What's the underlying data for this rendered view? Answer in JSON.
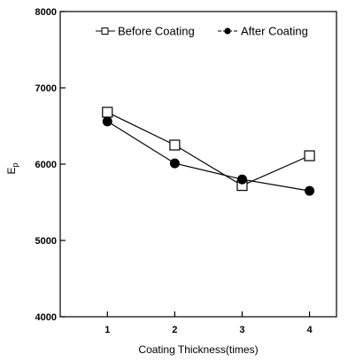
{
  "chart_data": {
    "type": "line",
    "title": "",
    "xlabel": "Coating Thickness(times)",
    "ylabel": "Ep",
    "ylabel_main": "E",
    "ylabel_sub": "p",
    "x": [
      1,
      2,
      3,
      4
    ],
    "x_tick_labels": [
      "1",
      "2",
      "3",
      "4"
    ],
    "xlim": [
      0.3,
      4.4
    ],
    "ylim": [
      4000,
      8000
    ],
    "y_ticks": [
      4000,
      5000,
      6000,
      7000,
      8000
    ],
    "y_tick_labels": [
      "4000",
      "5000",
      "6000",
      "7000",
      "8000"
    ],
    "grid": false,
    "legend_position": "top",
    "series": [
      {
        "name": "Before Coating",
        "marker": "open-square",
        "color": "#000000",
        "values": [
          6680,
          6250,
          5720,
          6110
        ]
      },
      {
        "name": "After Coating",
        "marker": "filled-circle",
        "color": "#000000",
        "values": [
          6560,
          6010,
          5800,
          5650
        ]
      }
    ]
  }
}
